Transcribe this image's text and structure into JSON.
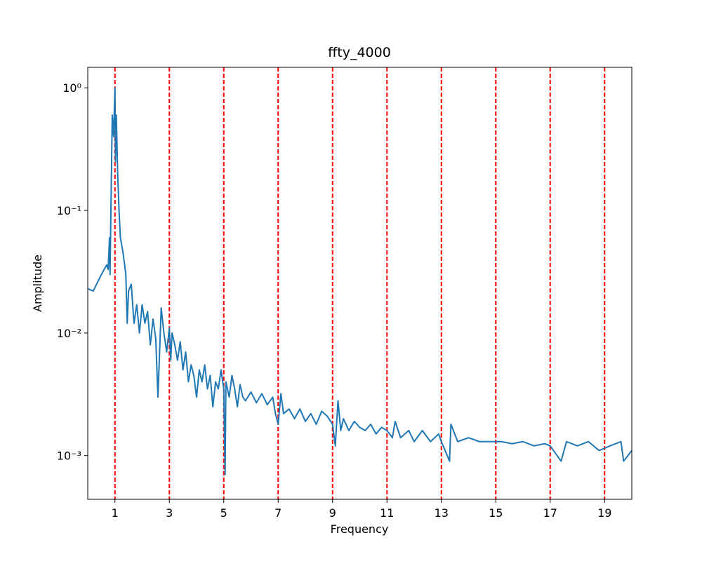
{
  "chart_data": {
    "type": "line",
    "title": "ffty_4000",
    "xlabel": "Frequency",
    "ylabel": "Amplitude",
    "log_y": true,
    "xlim": [
      0,
      20
    ],
    "xticks": [
      1,
      3,
      5,
      7,
      9,
      11,
      13,
      15,
      17,
      19
    ],
    "ylim": [
      0.00044,
      1.47
    ],
    "yticks": [
      {
        "value": 1,
        "label": "10⁰"
      },
      {
        "value": 0.1,
        "label": "10⁻¹"
      },
      {
        "value": 0.01,
        "label": "10⁻²"
      },
      {
        "value": 0.001,
        "label": "10⁻³"
      }
    ],
    "vlines": [
      1,
      3,
      5,
      7,
      9,
      11,
      13,
      15,
      17,
      19
    ],
    "vline_color": "#ff0000",
    "series": [
      {
        "color": "#1f77b4",
        "x": [
          0,
          0.2,
          0.5,
          0.7,
          0.75,
          0.8,
          0.82,
          0.9,
          0.95,
          1.0,
          1.02,
          1.05,
          1.1,
          1.15,
          1.2,
          1.3,
          1.4,
          1.45,
          1.5,
          1.6,
          1.7,
          1.8,
          1.9,
          2.0,
          2.1,
          2.2,
          2.3,
          2.4,
          2.5,
          2.58,
          2.7,
          2.8,
          2.9,
          3.0,
          3.05,
          3.1,
          3.2,
          3.3,
          3.4,
          3.5,
          3.6,
          3.7,
          3.8,
          3.9,
          4.0,
          4.1,
          4.2,
          4.3,
          4.4,
          4.5,
          4.6,
          4.7,
          4.8,
          4.9,
          5.0,
          5.05,
          5.08,
          5.2,
          5.3,
          5.4,
          5.5,
          5.6,
          5.7,
          5.8,
          6.0,
          6.2,
          6.4,
          6.6,
          6.8,
          6.9,
          7.0,
          7.1,
          7.2,
          7.4,
          7.6,
          7.8,
          8.0,
          8.2,
          8.4,
          8.6,
          8.8,
          9.0,
          9.1,
          9.2,
          9.3,
          9.4,
          9.6,
          9.8,
          10.0,
          10.2,
          10.4,
          10.6,
          10.8,
          11.0,
          11.2,
          11.3,
          11.5,
          11.8,
          12.0,
          12.3,
          12.6,
          12.9,
          13.0,
          13.3,
          13.35,
          13.6,
          14.0,
          14.4,
          14.8,
          15.2,
          15.6,
          16.0,
          16.4,
          16.8,
          17.0,
          17.4,
          17.6,
          18.0,
          18.4,
          18.8,
          19.2,
          19.6,
          19.7,
          20.0
        ],
        "values": [
          0.023,
          0.022,
          0.03,
          0.036,
          0.033,
          0.06,
          0.03,
          0.6,
          0.4,
          1.0,
          0.25,
          0.6,
          0.2,
          0.1,
          0.06,
          0.045,
          0.03,
          0.012,
          0.022,
          0.025,
          0.012,
          0.017,
          0.01,
          0.017,
          0.012,
          0.015,
          0.008,
          0.013,
          0.009,
          0.003,
          0.016,
          0.01,
          0.007,
          0.011,
          0.006,
          0.01,
          0.008,
          0.006,
          0.0085,
          0.005,
          0.007,
          0.004,
          0.0055,
          0.0045,
          0.003,
          0.005,
          0.004,
          0.0055,
          0.0035,
          0.0045,
          0.0025,
          0.004,
          0.0035,
          0.005,
          0.0035,
          0.0007,
          0.004,
          0.003,
          0.0045,
          0.0035,
          0.0025,
          0.0038,
          0.003,
          0.0028,
          0.0033,
          0.0027,
          0.0032,
          0.0026,
          0.003,
          0.0022,
          0.0018,
          0.0032,
          0.0022,
          0.0024,
          0.002,
          0.0024,
          0.0019,
          0.0022,
          0.0018,
          0.0023,
          0.0021,
          0.0018,
          0.0012,
          0.0028,
          0.0016,
          0.002,
          0.0016,
          0.0019,
          0.0017,
          0.0016,
          0.0018,
          0.0015,
          0.0017,
          0.0016,
          0.0014,
          0.0019,
          0.0014,
          0.0016,
          0.0013,
          0.0016,
          0.0013,
          0.0015,
          0.0013,
          0.0009,
          0.0018,
          0.0013,
          0.0014,
          0.0013,
          0.0013,
          0.0013,
          0.00125,
          0.0013,
          0.0012,
          0.00125,
          0.0012,
          0.0009,
          0.0013,
          0.0012,
          0.0013,
          0.0011,
          0.0012,
          0.0013,
          0.0009,
          0.0011
        ]
      }
    ]
  }
}
